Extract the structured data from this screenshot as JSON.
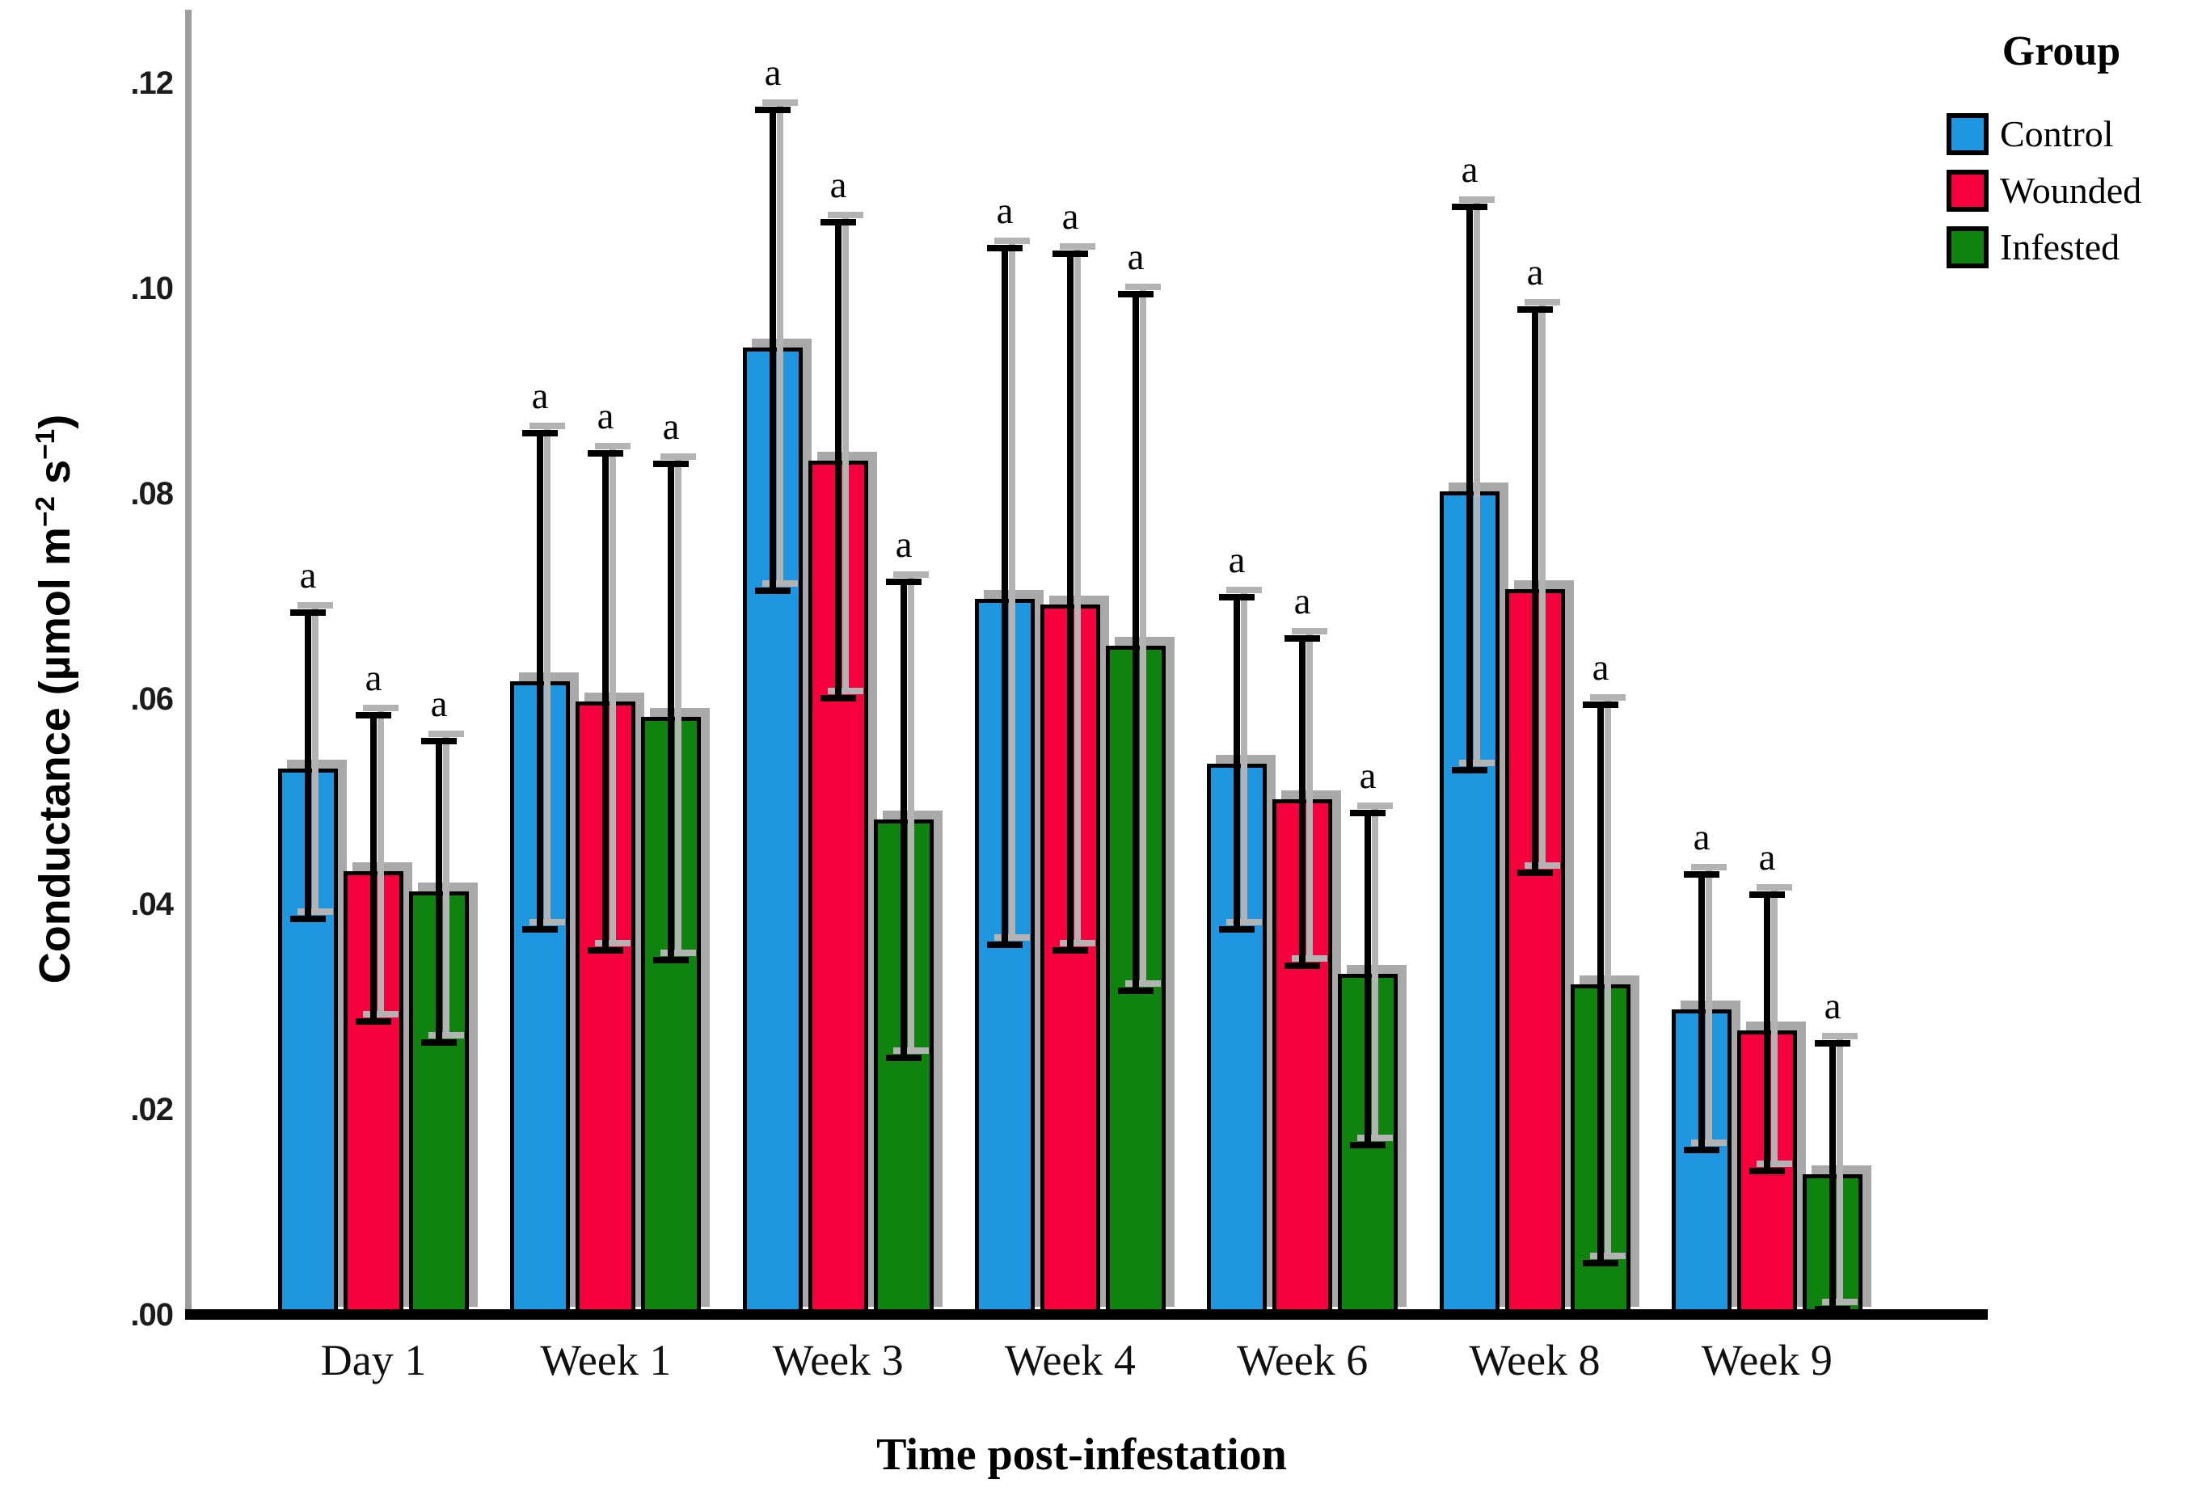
{
  "figure": {
    "x_axis_title": "Time post-infestation",
    "y_axis_title": "Conductance (µmol m⁻² s⁻¹)",
    "y_axis_title_parts": {
      "pre": "Conductance (µmol m",
      "sup1": "−2",
      "mid": " s",
      "sup2": "−1",
      "post": ")"
    },
    "axis_line_color": "#9d9d9d",
    "baseline_color": "#000000",
    "background": "#ffffff"
  },
  "legend": {
    "title": "Group",
    "position": "top-right",
    "items": [
      {
        "label": "Control",
        "color": "#1E96E0"
      },
      {
        "label": "Wounded",
        "color": "#F5003D"
      },
      {
        "label": "Infested",
        "color": "#0E830E"
      }
    ]
  },
  "chart_data": {
    "type": "bar",
    "title": "",
    "xlabel": "Time post-infestation",
    "ylabel": "Conductance (µmol m⁻² s⁻¹)",
    "grid": false,
    "legend_position": "top-right",
    "ylim": [
      0,
      0.125
    ],
    "yticks": [
      {
        "label": ".00",
        "value": 0.0
      },
      {
        "label": ".02",
        "value": 0.02
      },
      {
        "label": ".04",
        "value": 0.04
      },
      {
        "label": ".06",
        "value": 0.06
      },
      {
        "label": ".08",
        "value": 0.08
      },
      {
        "label": ".10",
        "value": 0.1
      },
      {
        "label": ".12",
        "value": 0.12
      }
    ],
    "categories": [
      "Day 1",
      "Week 1",
      "Week 3",
      "Week 4",
      "Week 6",
      "Week 8",
      "Week 9"
    ],
    "series": [
      {
        "name": "Control",
        "color": "#1E96E0",
        "values": [
          0.053,
          0.0615,
          0.094,
          0.0695,
          0.0535,
          0.08,
          0.0295
        ],
        "err_high": [
          0.0685,
          0.086,
          0.1175,
          0.104,
          0.07,
          0.108,
          0.043
        ],
        "err_low": [
          0.038,
          0.037,
          0.07,
          0.0355,
          0.037,
          0.0525,
          0.0155
        ],
        "letters": [
          "a",
          "a",
          "a",
          "a",
          "a",
          "a",
          "a"
        ]
      },
      {
        "name": "Wounded",
        "color": "#F5003D",
        "values": [
          0.043,
          0.0595,
          0.083,
          0.069,
          0.05,
          0.0705,
          0.0275
        ],
        "err_high": [
          0.0585,
          0.084,
          0.1065,
          0.1035,
          0.066,
          0.098,
          0.041
        ],
        "err_low": [
          0.028,
          0.035,
          0.0595,
          0.035,
          0.0335,
          0.0425,
          0.0135
        ],
        "letters": [
          "a",
          "a",
          "a",
          "a",
          "a",
          "a",
          "a"
        ]
      },
      {
        "name": "Infested",
        "color": "#0E830E",
        "values": [
          0.041,
          0.058,
          0.048,
          0.065,
          0.033,
          0.032,
          0.0135
        ],
        "err_high": [
          0.056,
          0.083,
          0.0715,
          0.0995,
          0.049,
          0.0595,
          0.0265
        ],
        "err_low": [
          0.026,
          0.034,
          0.0245,
          0.031,
          0.016,
          0.0045,
          0.0
        ],
        "letters": [
          "a",
          "a",
          "a",
          "a",
          "a",
          "a",
          "a"
        ]
      }
    ],
    "significance_note": "all bars labeled 'a'"
  }
}
